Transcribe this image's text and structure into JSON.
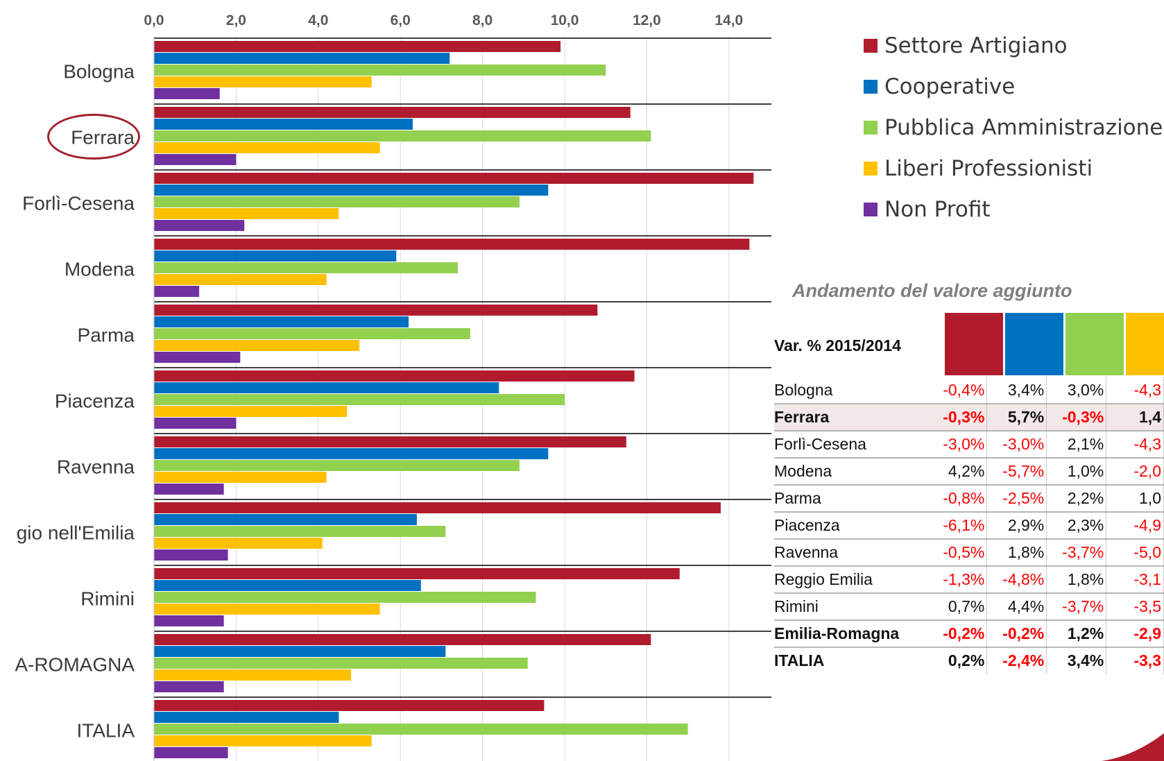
{
  "chart_data": {
    "type": "bar",
    "orientation": "horizontal",
    "categories": [
      "Bologna",
      "Ferrara",
      "Forlì-Cesena",
      "Modena",
      "Parma",
      "Piacenza",
      "Ravenna",
      "gio nell'Emilia",
      "Rimini",
      "A-ROMAGNA",
      "ITALIA"
    ],
    "series": [
      {
        "name": "Settore Artigiano",
        "color": "#b01c2e",
        "values": [
          9.9,
          11.6,
          14.6,
          14.5,
          10.8,
          11.7,
          11.5,
          13.8,
          12.8,
          12.1,
          9.5
        ]
      },
      {
        "name": "Cooperative",
        "color": "#0070c0",
        "values": [
          7.2,
          6.3,
          9.6,
          5.9,
          6.2,
          8.4,
          9.6,
          6.4,
          6.5,
          7.1,
          4.5
        ]
      },
      {
        "name": "Pubblica Amministrazione",
        "color": "#92d050",
        "values": [
          11.0,
          12.1,
          8.9,
          7.4,
          7.7,
          10.0,
          8.9,
          7.1,
          9.3,
          9.1,
          13.0
        ]
      },
      {
        "name": "Liberi Professionisti",
        "color": "#ffc000",
        "values": [
          5.3,
          5.5,
          4.5,
          4.2,
          5.0,
          4.7,
          4.2,
          4.1,
          5.5,
          4.8,
          5.3
        ]
      },
      {
        "name": "Non Profit",
        "color": "#7030a0",
        "values": [
          1.6,
          2.0,
          2.2,
          1.1,
          2.1,
          2.0,
          1.7,
          1.8,
          1.7,
          1.7,
          1.8
        ]
      }
    ],
    "xlim": [
      0,
      14.5
    ],
    "xticks": [
      "0,0",
      "2,0",
      "4,0",
      "6,0",
      "8,0",
      "10,0",
      "12,0",
      "14,0"
    ],
    "grid": true,
    "legend_position": "right"
  },
  "highlight": "Ferrara",
  "table": {
    "title": "Andamento del valore aggiunto",
    "header_label": "Var. % 2015/2014",
    "header_colors": [
      "#b01c2e",
      "#0070c0",
      "#92d050",
      "#ffc000"
    ],
    "rows": [
      {
        "name": "Bologna",
        "values": [
          "-0,4%",
          "3,4%",
          "3,0%",
          "-4,3"
        ],
        "style": ""
      },
      {
        "name": "Ferrara",
        "values": [
          "-0,3%",
          "5,7%",
          "-0,3%",
          "1,4"
        ],
        "style": "hl bold"
      },
      {
        "name": "Forlì-Cesena",
        "values": [
          "-3,0%",
          "-3,0%",
          "2,1%",
          "-4,3"
        ],
        "style": ""
      },
      {
        "name": "Modena",
        "values": [
          "4,2%",
          "-5,7%",
          "1,0%",
          "-2,0"
        ],
        "style": ""
      },
      {
        "name": "Parma",
        "values": [
          "-0,8%",
          "-2,5%",
          "2,2%",
          "1,0"
        ],
        "style": ""
      },
      {
        "name": "Piacenza",
        "values": [
          "-6,1%",
          "2,9%",
          "2,3%",
          "-4,9"
        ],
        "style": ""
      },
      {
        "name": "Ravenna",
        "values": [
          "-0,5%",
          "1,8%",
          "-3,7%",
          "-5,0"
        ],
        "style": ""
      },
      {
        "name": "Reggio Emilia",
        "values": [
          "-1,3%",
          "-4,8%",
          "1,8%",
          "-3,1"
        ],
        "style": ""
      },
      {
        "name": "Rimini",
        "values": [
          "0,7%",
          "4,4%",
          "-3,7%",
          "-3,5"
        ],
        "style": ""
      },
      {
        "name": "Emilia-Romagna",
        "values": [
          "-0,2%",
          "-0,2%",
          "1,2%",
          "-2,9"
        ],
        "style": "bold"
      },
      {
        "name": "ITALIA",
        "values": [
          "0,2%",
          "-2,4%",
          "3,4%",
          "-3,3"
        ],
        "style": "bold last"
      }
    ]
  }
}
